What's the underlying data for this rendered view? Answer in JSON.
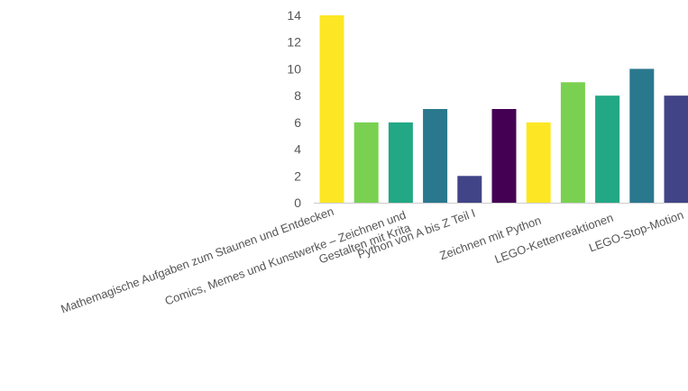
{
  "chart_data": {
    "type": "bar",
    "categories": [
      "Mathemagische Aufgaben zum Staunen und Entdecken",
      "Comics, Memes und Kunstwerke – Zeichnen und Gestalten mit Krita",
      "Python von A bis Z Teil I",
      "Zeichnen mit  Python",
      "LEGO-Kettenreaktionen",
      "LEGO-Stop-Motion"
    ],
    "bars": [
      {
        "category_index": 0,
        "value": 14,
        "color": "#fde725"
      },
      {
        "category_index": 1,
        "value": 6,
        "color": "#7ad151"
      },
      {
        "category_index": 1,
        "value": 6,
        "color": "#22a884"
      },
      {
        "category_index": 2,
        "value": 7,
        "color": "#2a788e"
      },
      {
        "category_index": 2,
        "value": 2,
        "color": "#414487"
      },
      {
        "category_index": 3,
        "value": 7,
        "color": "#440154"
      },
      {
        "category_index": 3,
        "value": 6,
        "color": "#fde725"
      },
      {
        "category_index": 4,
        "value": 9,
        "color": "#7ad151"
      },
      {
        "category_index": 4,
        "value": 8,
        "color": "#22a884"
      },
      {
        "category_index": 5,
        "value": 10,
        "color": "#2a788e"
      },
      {
        "category_index": 5,
        "value": 8,
        "color": "#414487"
      }
    ],
    "yticks": [
      0,
      2,
      4,
      6,
      8,
      10,
      12,
      14
    ],
    "ylim": [
      0,
      14
    ],
    "title": "",
    "xlabel": "",
    "ylabel": "",
    "grid": false,
    "legend": "none"
  }
}
